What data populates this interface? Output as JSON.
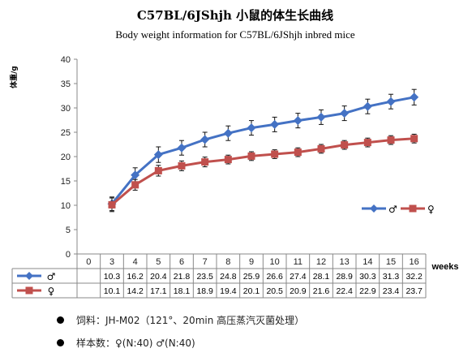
{
  "title": "C57BL/6JShjh 小鼠的体生长曲线",
  "subtitle": "Body weight information for C57BL/6JShjh inbred mice",
  "chart_data": {
    "type": "line",
    "ylabel": "体重/g",
    "xlabel": "weeks",
    "ylim": [
      0,
      40
    ],
    "yticks": [
      0,
      5,
      10,
      15,
      20,
      25,
      30,
      35,
      40
    ],
    "x_categories": [
      "0",
      "3",
      "4",
      "5",
      "6",
      "7",
      "8",
      "9",
      "10",
      "11",
      "12",
      "13",
      "14",
      "15",
      "16"
    ],
    "x": [
      3,
      4,
      5,
      6,
      7,
      8,
      9,
      10,
      11,
      12,
      13,
      14,
      15,
      16
    ],
    "grid": false,
    "error_bars": true,
    "legend": "right",
    "series": [
      {
        "name": "♂",
        "color": "#4472C4",
        "marker": "diamond",
        "values": [
          10.3,
          16.2,
          20.4,
          21.8,
          23.5,
          24.8,
          25.9,
          26.6,
          27.4,
          28.1,
          28.9,
          30.3,
          31.3,
          32.2
        ],
        "errors": [
          1.4,
          1.5,
          1.6,
          1.5,
          1.5,
          1.5,
          1.5,
          1.5,
          1.5,
          1.5,
          1.5,
          1.5,
          1.5,
          1.6
        ]
      },
      {
        "name": "♀",
        "color": "#C0504D",
        "marker": "square",
        "values": [
          10.1,
          14.2,
          17.1,
          18.1,
          18.9,
          19.4,
          20.1,
          20.5,
          20.9,
          21.6,
          22.4,
          22.9,
          23.4,
          23.7
        ],
        "errors": [
          1.4,
          1.1,
          1.1,
          1.0,
          1.0,
          0.9,
          0.9,
          0.9,
          0.9,
          0.9,
          0.9,
          0.9,
          0.9,
          0.9
        ]
      }
    ]
  },
  "notes": [
    "饲料：JH-M02（121°、20min 高压蒸汽灭菌处理）",
    "样本数：♀(N:40) ♂(N:40)"
  ]
}
